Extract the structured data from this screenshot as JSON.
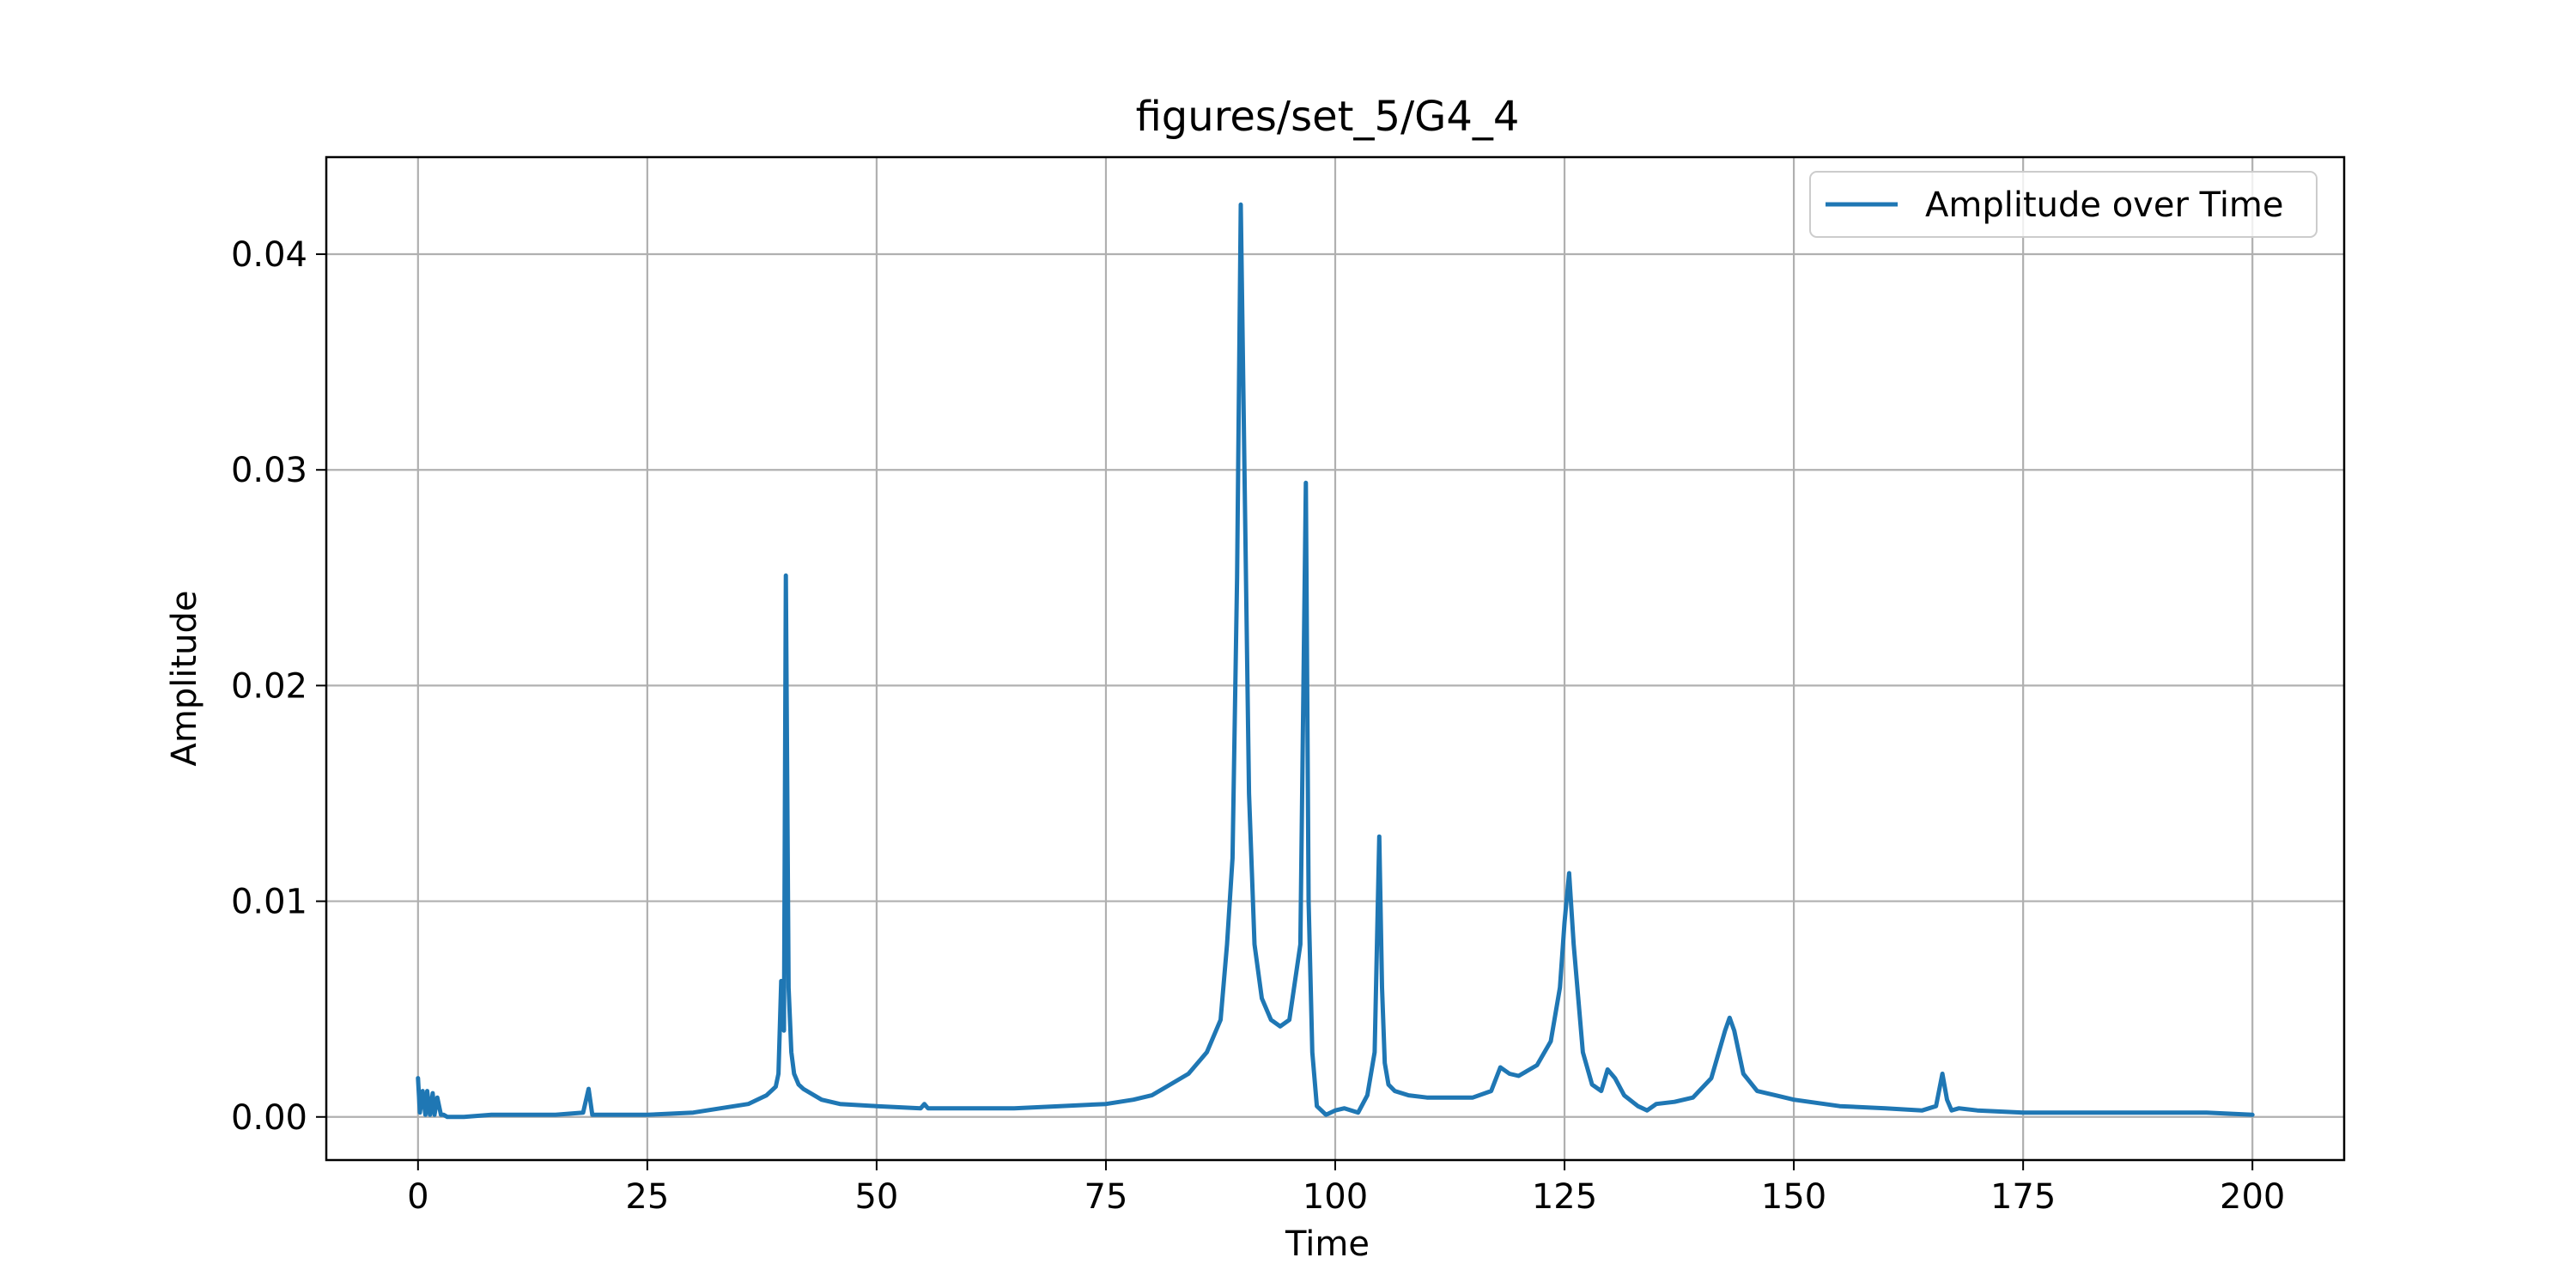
{
  "chart_data": {
    "type": "line",
    "title": "figures/set_5/G4_4",
    "xlabel": "Time",
    "ylabel": "Amplitude",
    "xlim": [
      -10,
      210
    ],
    "ylim": [
      -0.002,
      0.0445
    ],
    "x_ticks": [
      0,
      25,
      50,
      75,
      100,
      125,
      150,
      175,
      200
    ],
    "x_tick_labels": [
      "0",
      "25",
      "50",
      "75",
      "100",
      "125",
      "150",
      "175",
      "200"
    ],
    "y_ticks": [
      0.0,
      0.01,
      0.02,
      0.03,
      0.04
    ],
    "y_tick_labels": [
      "0.00",
      "0.01",
      "0.02",
      "0.03",
      "0.04"
    ],
    "grid": true,
    "legend_position": "top-right",
    "colors": {
      "series": "#1f77b4",
      "grid": "#b0b0b0",
      "axes": "#000000"
    },
    "series": [
      {
        "name": "Amplitude over Time",
        "x": [
          0,
          0.2,
          0.5,
          0.8,
          1.0,
          1.3,
          1.6,
          1.8,
          2.1,
          2.5,
          2.8,
          3.2,
          5,
          8,
          10,
          15,
          18,
          18.6,
          19,
          20,
          25,
          30,
          33,
          36,
          38,
          39,
          39.3,
          39.6,
          39.9,
          40.1,
          40.4,
          40.7,
          41,
          41.5,
          42,
          44,
          46,
          50,
          54.8,
          55.2,
          55.6,
          60,
          65,
          70,
          75,
          78,
          80,
          82,
          84,
          86,
          87.5,
          88.2,
          88.8,
          89.3,
          89.7,
          90.1,
          90.6,
          91.2,
          92,
          93,
          94,
          95,
          96.2,
          96.8,
          97.1,
          97.5,
          98,
          99,
          100,
          101,
          102.5,
          103.5,
          104.3,
          104.8,
          105.1,
          105.4,
          105.8,
          106.5,
          108,
          110,
          115,
          117,
          118,
          119,
          120,
          122,
          123.5,
          124.5,
          125,
          125.5,
          126,
          127,
          128,
          129,
          129.7,
          130.5,
          131.5,
          133,
          134,
          135,
          137,
          139,
          141,
          142.5,
          143,
          143.5,
          144.5,
          146,
          148,
          150,
          155,
          160,
          164,
          165.5,
          166.2,
          166.7,
          167.2,
          168,
          170,
          175,
          180,
          185,
          190,
          195,
          200
        ],
        "values": [
          0.0018,
          0.0002,
          0.0012,
          0.0001,
          0.0012,
          0.0001,
          0.0011,
          0.0001,
          0.0009,
          0.0001,
          0.0001,
          0.0,
          0.0,
          0.0001,
          0.0001,
          0.0001,
          0.0002,
          0.0013,
          0.0001,
          0.0001,
          0.0001,
          0.0002,
          0.0004,
          0.0006,
          0.001,
          0.0014,
          0.002,
          0.0063,
          0.004,
          0.0251,
          0.006,
          0.003,
          0.002,
          0.0015,
          0.0013,
          0.0008,
          0.0006,
          0.0005,
          0.0004,
          0.0006,
          0.0004,
          0.0004,
          0.0004,
          0.0005,
          0.0006,
          0.0008,
          0.001,
          0.0015,
          0.002,
          0.003,
          0.0045,
          0.008,
          0.012,
          0.025,
          0.0423,
          0.03,
          0.015,
          0.008,
          0.0055,
          0.0045,
          0.0042,
          0.0045,
          0.008,
          0.0294,
          0.01,
          0.003,
          0.0005,
          0.0001,
          0.0003,
          0.0004,
          0.0002,
          0.001,
          0.003,
          0.013,
          0.006,
          0.0025,
          0.0015,
          0.0012,
          0.001,
          0.0009,
          0.0009,
          0.0012,
          0.0023,
          0.002,
          0.0019,
          0.0024,
          0.0035,
          0.006,
          0.009,
          0.0113,
          0.008,
          0.003,
          0.0015,
          0.0012,
          0.0022,
          0.0018,
          0.001,
          0.0005,
          0.0003,
          0.0006,
          0.0007,
          0.0009,
          0.0018,
          0.004,
          0.0046,
          0.004,
          0.002,
          0.0012,
          0.001,
          0.0008,
          0.0005,
          0.0004,
          0.0003,
          0.0005,
          0.002,
          0.0008,
          0.0003,
          0.0004,
          0.0003,
          0.0002,
          0.0002,
          0.0002,
          0.0002,
          0.0002,
          0.0001
        ]
      }
    ]
  }
}
